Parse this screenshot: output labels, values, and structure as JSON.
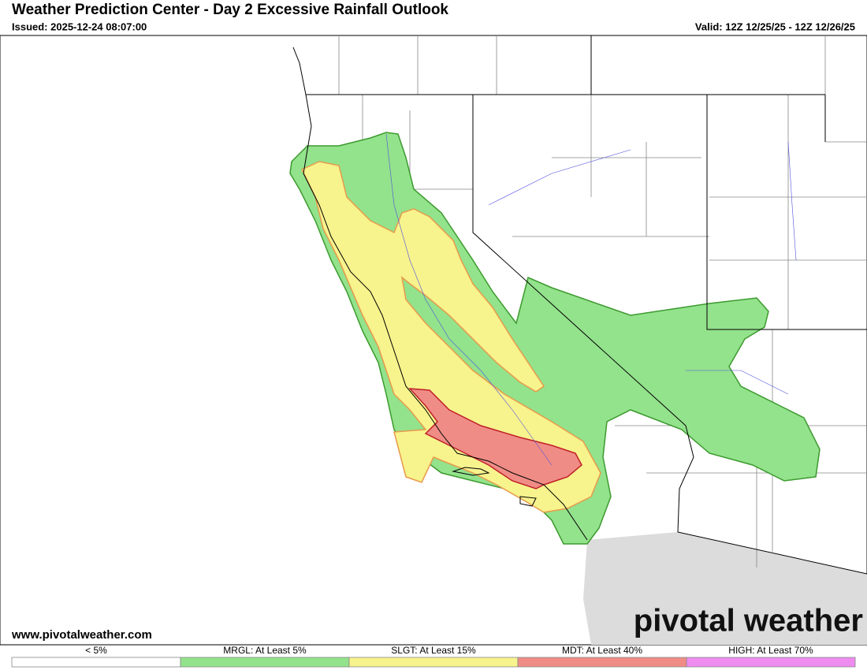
{
  "header": {
    "title": "Weather Prediction Center - Day 2 Excessive Rainfall Outlook",
    "issued": "Issued: 2025-12-24 08:07:00",
    "valid": "Valid: 12Z 12/25/25 - 12Z 12/26/25"
  },
  "footer": {
    "website": "www.pivotalweather.com",
    "logo": "pivotal weather"
  },
  "legend": [
    {
      "label": "< 5%",
      "color": "#ffffff"
    },
    {
      "label": "MRGL: At Least 5%",
      "color": "#93e28c"
    },
    {
      "label": "SLGT: At Least 15%",
      "color": "#f7f38d"
    },
    {
      "label": "MDT: At Least 40%",
      "color": "#ef8c85"
    },
    {
      "label": "HIGH: At Least 70%",
      "color": "#ee8cf0"
    }
  ]
}
